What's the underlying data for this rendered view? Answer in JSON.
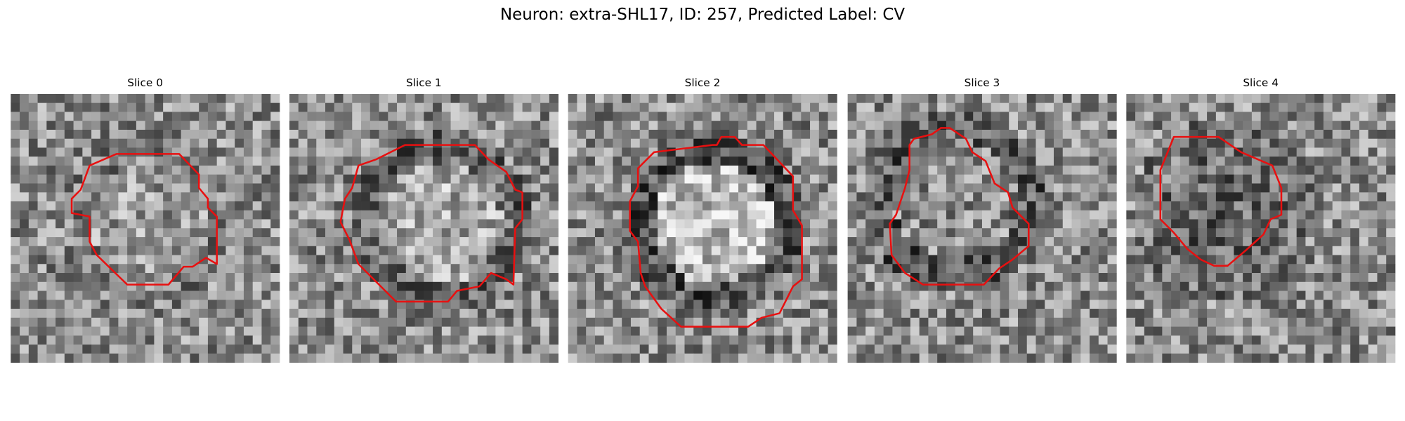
{
  "title": "Neuron: extra-SHL17, ID: 257, Predicted Label: CV",
  "panels": [
    {
      "title": "Slice 0"
    },
    {
      "title": "Slice 1"
    },
    {
      "title": "Slice 2"
    },
    {
      "title": "Slice 3"
    },
    {
      "title": "Slice 4"
    }
  ]
}
